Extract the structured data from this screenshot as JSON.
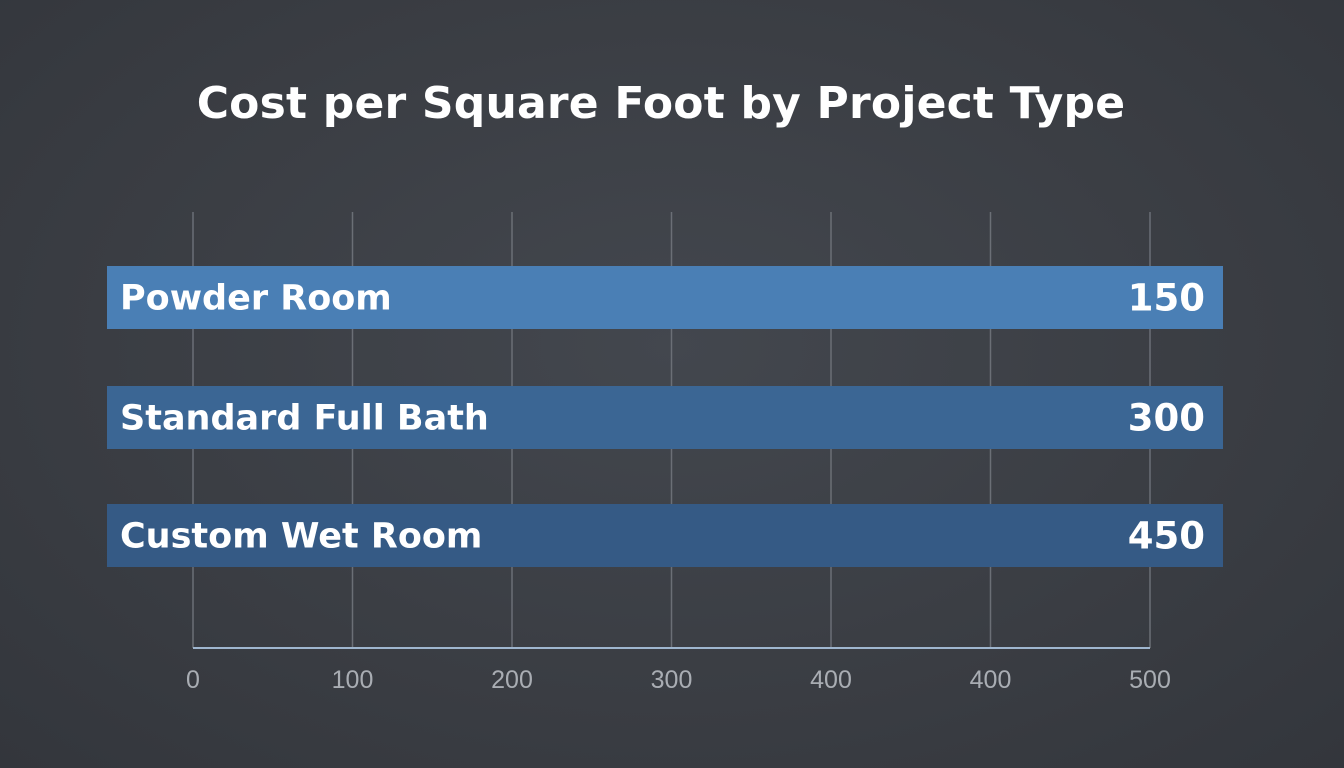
{
  "chart_data": {
    "type": "bar",
    "orientation": "horizontal",
    "title": "Cost per Square Foot by Project Type",
    "categories": [
      "Powder Room",
      "Standard Full Bath",
      "Custom Wet Room"
    ],
    "values": [
      150,
      300,
      450
    ],
    "x_ticks": [
      "0",
      "100",
      "200",
      "300",
      "400",
      "400",
      "500"
    ],
    "xlim": [
      0,
      600
    ],
    "xlabel": "",
    "ylabel": "",
    "grid": "vertical",
    "legend": "none",
    "data_labels": "inside-right"
  },
  "colors": {
    "background": "#3b3e44",
    "bar_1": "#4a7fb5",
    "bar_2": "#3b6694",
    "bar_3": "#355a85",
    "gridline": "#6b6f76",
    "axis_line": "#9fb6cf",
    "tick_text": "#a9adb3",
    "text": "#ffffff"
  }
}
